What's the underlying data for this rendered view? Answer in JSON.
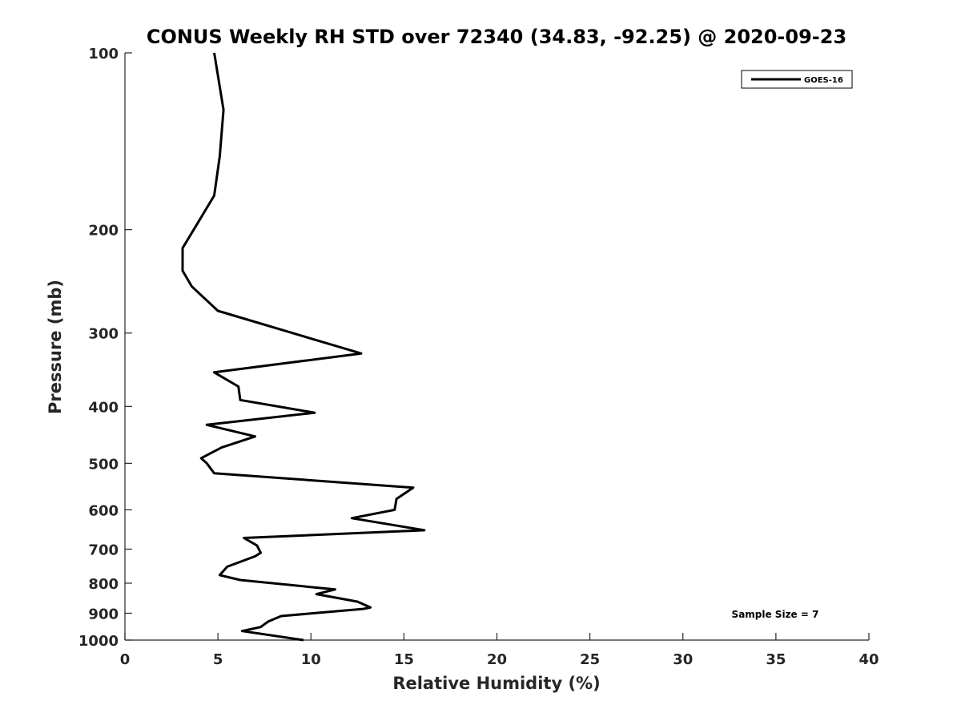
{
  "chart_data": {
    "type": "line",
    "title": "CONUS Weekly RH STD over 72340 (34.83, -92.25) @ 2020-09-23",
    "xlabel": "Relative Humidity (%)",
    "ylabel": "Pressure (mb)",
    "xlim": [
      0,
      40
    ],
    "ylim": [
      1000,
      100
    ],
    "yscale": "log",
    "xticks": [
      0,
      5,
      10,
      15,
      20,
      25,
      30,
      35,
      40
    ],
    "yticks": [
      100,
      200,
      300,
      400,
      500,
      600,
      700,
      800,
      900,
      1000
    ],
    "grid": false,
    "legend_position": "top-right",
    "series": [
      {
        "name": "GOES-16",
        "color": "#000000",
        "points": [
          [
            4.8,
            100
          ],
          [
            5.3,
            125
          ],
          [
            5.1,
            150
          ],
          [
            4.8,
            175
          ],
          [
            3.7,
            200
          ],
          [
            3.1,
            215
          ],
          [
            3.1,
            235
          ],
          [
            3.6,
            250
          ],
          [
            5.0,
            275
          ],
          [
            12.7,
            325
          ],
          [
            4.8,
            350
          ],
          [
            6.1,
            370
          ],
          [
            6.2,
            390
          ],
          [
            10.2,
            410
          ],
          [
            4.4,
            430
          ],
          [
            7.0,
            450
          ],
          [
            5.2,
            470
          ],
          [
            4.1,
            490
          ],
          [
            4.4,
            500
          ],
          [
            4.8,
            520
          ],
          [
            15.5,
            550
          ],
          [
            14.6,
            575
          ],
          [
            14.5,
            600
          ],
          [
            12.2,
            620
          ],
          [
            16.1,
            650
          ],
          [
            6.4,
            670
          ],
          [
            7.1,
            690
          ],
          [
            7.3,
            710
          ],
          [
            7.0,
            720
          ],
          [
            5.5,
            750
          ],
          [
            5.1,
            775
          ],
          [
            6.2,
            790
          ],
          [
            11.3,
            820
          ],
          [
            10.3,
            835
          ],
          [
            12.5,
            860
          ],
          [
            13.2,
            880
          ],
          [
            12.8,
            885
          ],
          [
            8.4,
            910
          ],
          [
            7.7,
            930
          ],
          [
            7.3,
            950
          ],
          [
            6.3,
            965
          ],
          [
            9.6,
            1000
          ]
        ]
      }
    ],
    "annotation": "Sample Size = 7"
  }
}
